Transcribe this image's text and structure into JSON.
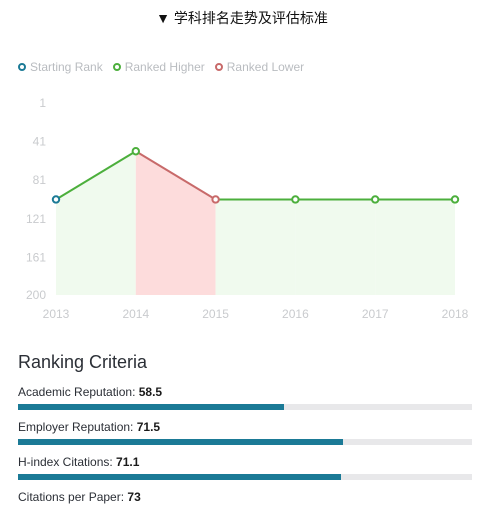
{
  "header": {
    "arrow": "▼",
    "title": "学科排名走势及评估标准"
  },
  "legend": [
    {
      "label": "Starting Rank",
      "color": "#1b7a96"
    },
    {
      "label": "Ranked Higher",
      "color": "#4caf3c"
    },
    {
      "label": "Ranked Lower",
      "color": "#c86a6a"
    }
  ],
  "chart_data": {
    "type": "line",
    "x": [
      2013,
      2014,
      2015,
      2016,
      2017,
      2018
    ],
    "y": [
      101,
      51,
      101,
      101,
      101,
      101
    ],
    "yticks": [
      1,
      41,
      81,
      121,
      161,
      200
    ],
    "xticks": [
      "2013",
      "2014",
      "2015",
      "2016",
      "2017",
      "2018"
    ],
    "ylim": [
      200,
      1
    ],
    "y_inverted": true,
    "grid": false,
    "colors": {
      "starting": "#1b7a96",
      "higher": "#4caf3c",
      "lower": "#c86a6a",
      "higher_fill": "#f0faee",
      "lower_fill": "#fddcdc",
      "tick_text": "#c9cbce"
    }
  },
  "criteria": {
    "title": "Ranking Criteria",
    "items": [
      {
        "label": "Academic Reputation: ",
        "value": "58.5",
        "fill": 0.585
      },
      {
        "label": "Employer Reputation: ",
        "value": "71.5",
        "fill": 0.715
      },
      {
        "label": "H-index Citations: ",
        "value": "71.1",
        "fill": 0.711
      },
      {
        "label": "Citations per Paper: ",
        "value": "73",
        "fill": 0.73
      }
    ]
  }
}
